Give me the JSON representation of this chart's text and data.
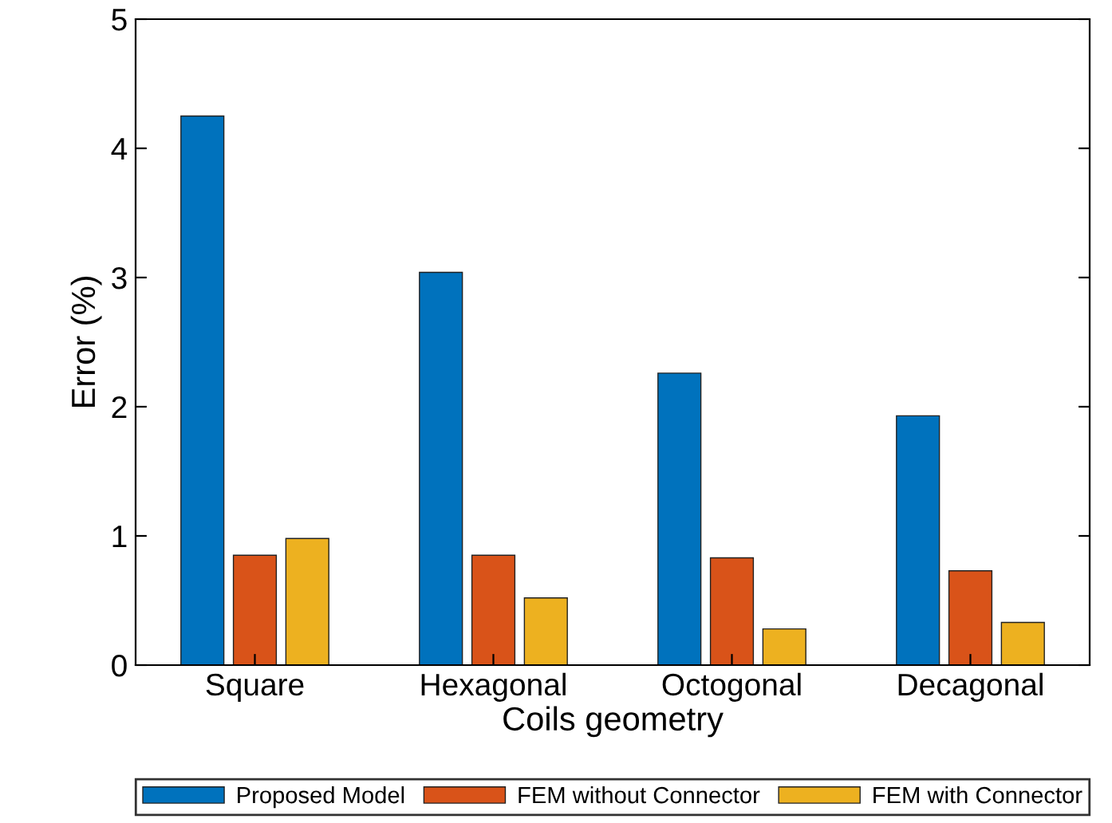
{
  "chart_data": {
    "type": "bar",
    "xlabel": "Coils geometry",
    "ylabel": "Error (%)",
    "categories": [
      "Square",
      "Hexagonal",
      "Octogonal",
      "Decagonal"
    ],
    "series": [
      {
        "name": "Proposed Model",
        "color": "#0072bd",
        "values": [
          4.25,
          3.04,
          2.26,
          1.93
        ]
      },
      {
        "name": "FEM without Connector",
        "color": "#d95319",
        "values": [
          0.85,
          0.85,
          0.83,
          0.73
        ]
      },
      {
        "name": "FEM with Connector",
        "color": "#edb120",
        "values": [
          0.98,
          0.52,
          0.28,
          0.33
        ]
      }
    ],
    "ylim": [
      0,
      5
    ],
    "yticks": [
      0,
      1,
      2,
      3,
      4,
      5
    ],
    "grid": false,
    "legend": "bottom"
  }
}
